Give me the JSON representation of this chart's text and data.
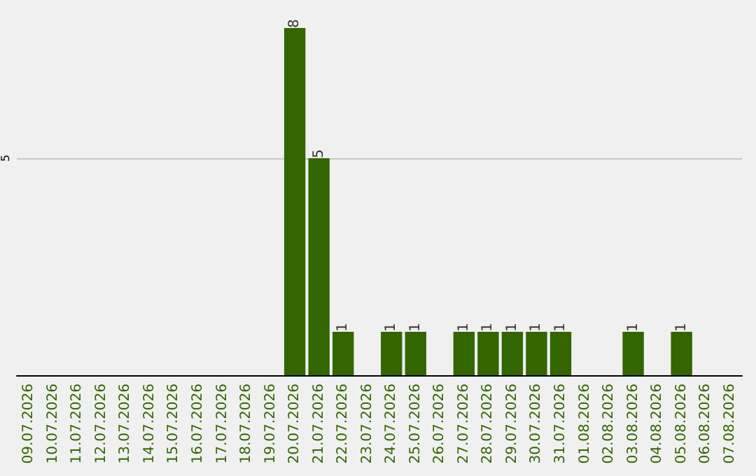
{
  "chart_data": {
    "type": "bar",
    "categories": [
      "09.07.2026",
      "10.07.2026",
      "11.07.2026",
      "12.07.2026",
      "13.07.2026",
      "14.07.2026",
      "15.07.2026",
      "16.07.2026",
      "17.07.2026",
      "18.07.2026",
      "19.07.2026",
      "20.07.2026",
      "21.07.2026",
      "22.07.2026",
      "23.07.2026",
      "24.07.2026",
      "25.07.2026",
      "26.07.2026",
      "27.07.2026",
      "28.07.2026",
      "29.07.2026",
      "30.07.2026",
      "31.07.2026",
      "01.08.2026",
      "02.08.2026",
      "03.08.2026",
      "04.08.2026",
      "05.08.2026",
      "06.08.2026",
      "07.08.2026"
    ],
    "values": [
      0,
      0,
      0,
      0,
      0,
      0,
      0,
      0,
      0,
      0,
      0,
      8,
      5,
      1,
      0,
      1,
      1,
      0,
      1,
      1,
      1,
      1,
      1,
      0,
      0,
      1,
      0,
      1,
      0,
      0
    ],
    "value_labels": [
      null,
      null,
      null,
      null,
      null,
      null,
      null,
      null,
      null,
      null,
      null,
      "8",
      "5",
      "1",
      null,
      "1",
      "1",
      null,
      "1",
      "1",
      "1",
      "1",
      "1",
      null,
      null,
      "1",
      null,
      "1",
      null,
      null
    ],
    "color": "#336600",
    "ylim": [
      0,
      8
    ],
    "yticks": [
      5
    ],
    "grid": "y"
  }
}
